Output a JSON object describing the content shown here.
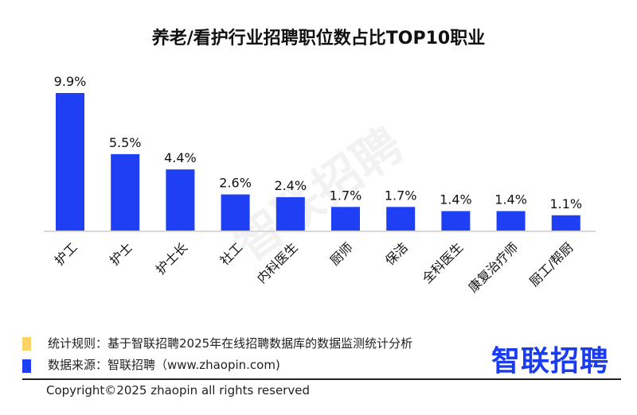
{
  "chart_data": {
    "type": "bar",
    "title": "养老/看护行业招聘职位数占比TOP10职业",
    "categories": [
      "护工",
      "护士",
      "护士长",
      "社工",
      "内科医生",
      "厨师",
      "保洁",
      "全科医生",
      "康复治疗师",
      "厨工/帮厨"
    ],
    "values": [
      9.9,
      5.5,
      4.4,
      2.6,
      2.4,
      1.7,
      1.7,
      1.4,
      1.4,
      1.1
    ],
    "data_labels": [
      "9.9%",
      "5.5%",
      "4.4%",
      "2.6%",
      "2.4%",
      "1.7%",
      "1.7%",
      "1.4%",
      "1.4%",
      "1.1%"
    ],
    "unit": "%",
    "ylim": [
      0,
      10
    ],
    "grid": false,
    "xlabel": "",
    "ylabel": "",
    "bar_color": "#1f3ff5"
  },
  "watermark": "智联招聘",
  "notes": [
    {
      "text": "统计规则：基于智联招聘2025年在线招聘数据库的数据监测统计分析",
      "color": "#fbd465"
    },
    {
      "text": "数据来源：智联招聘（www.zhaopin.com)",
      "color": "#1f3ff5"
    }
  ],
  "logo": "智联招聘",
  "copyright": "Copyright©2025 zhaopin all rights reserved"
}
